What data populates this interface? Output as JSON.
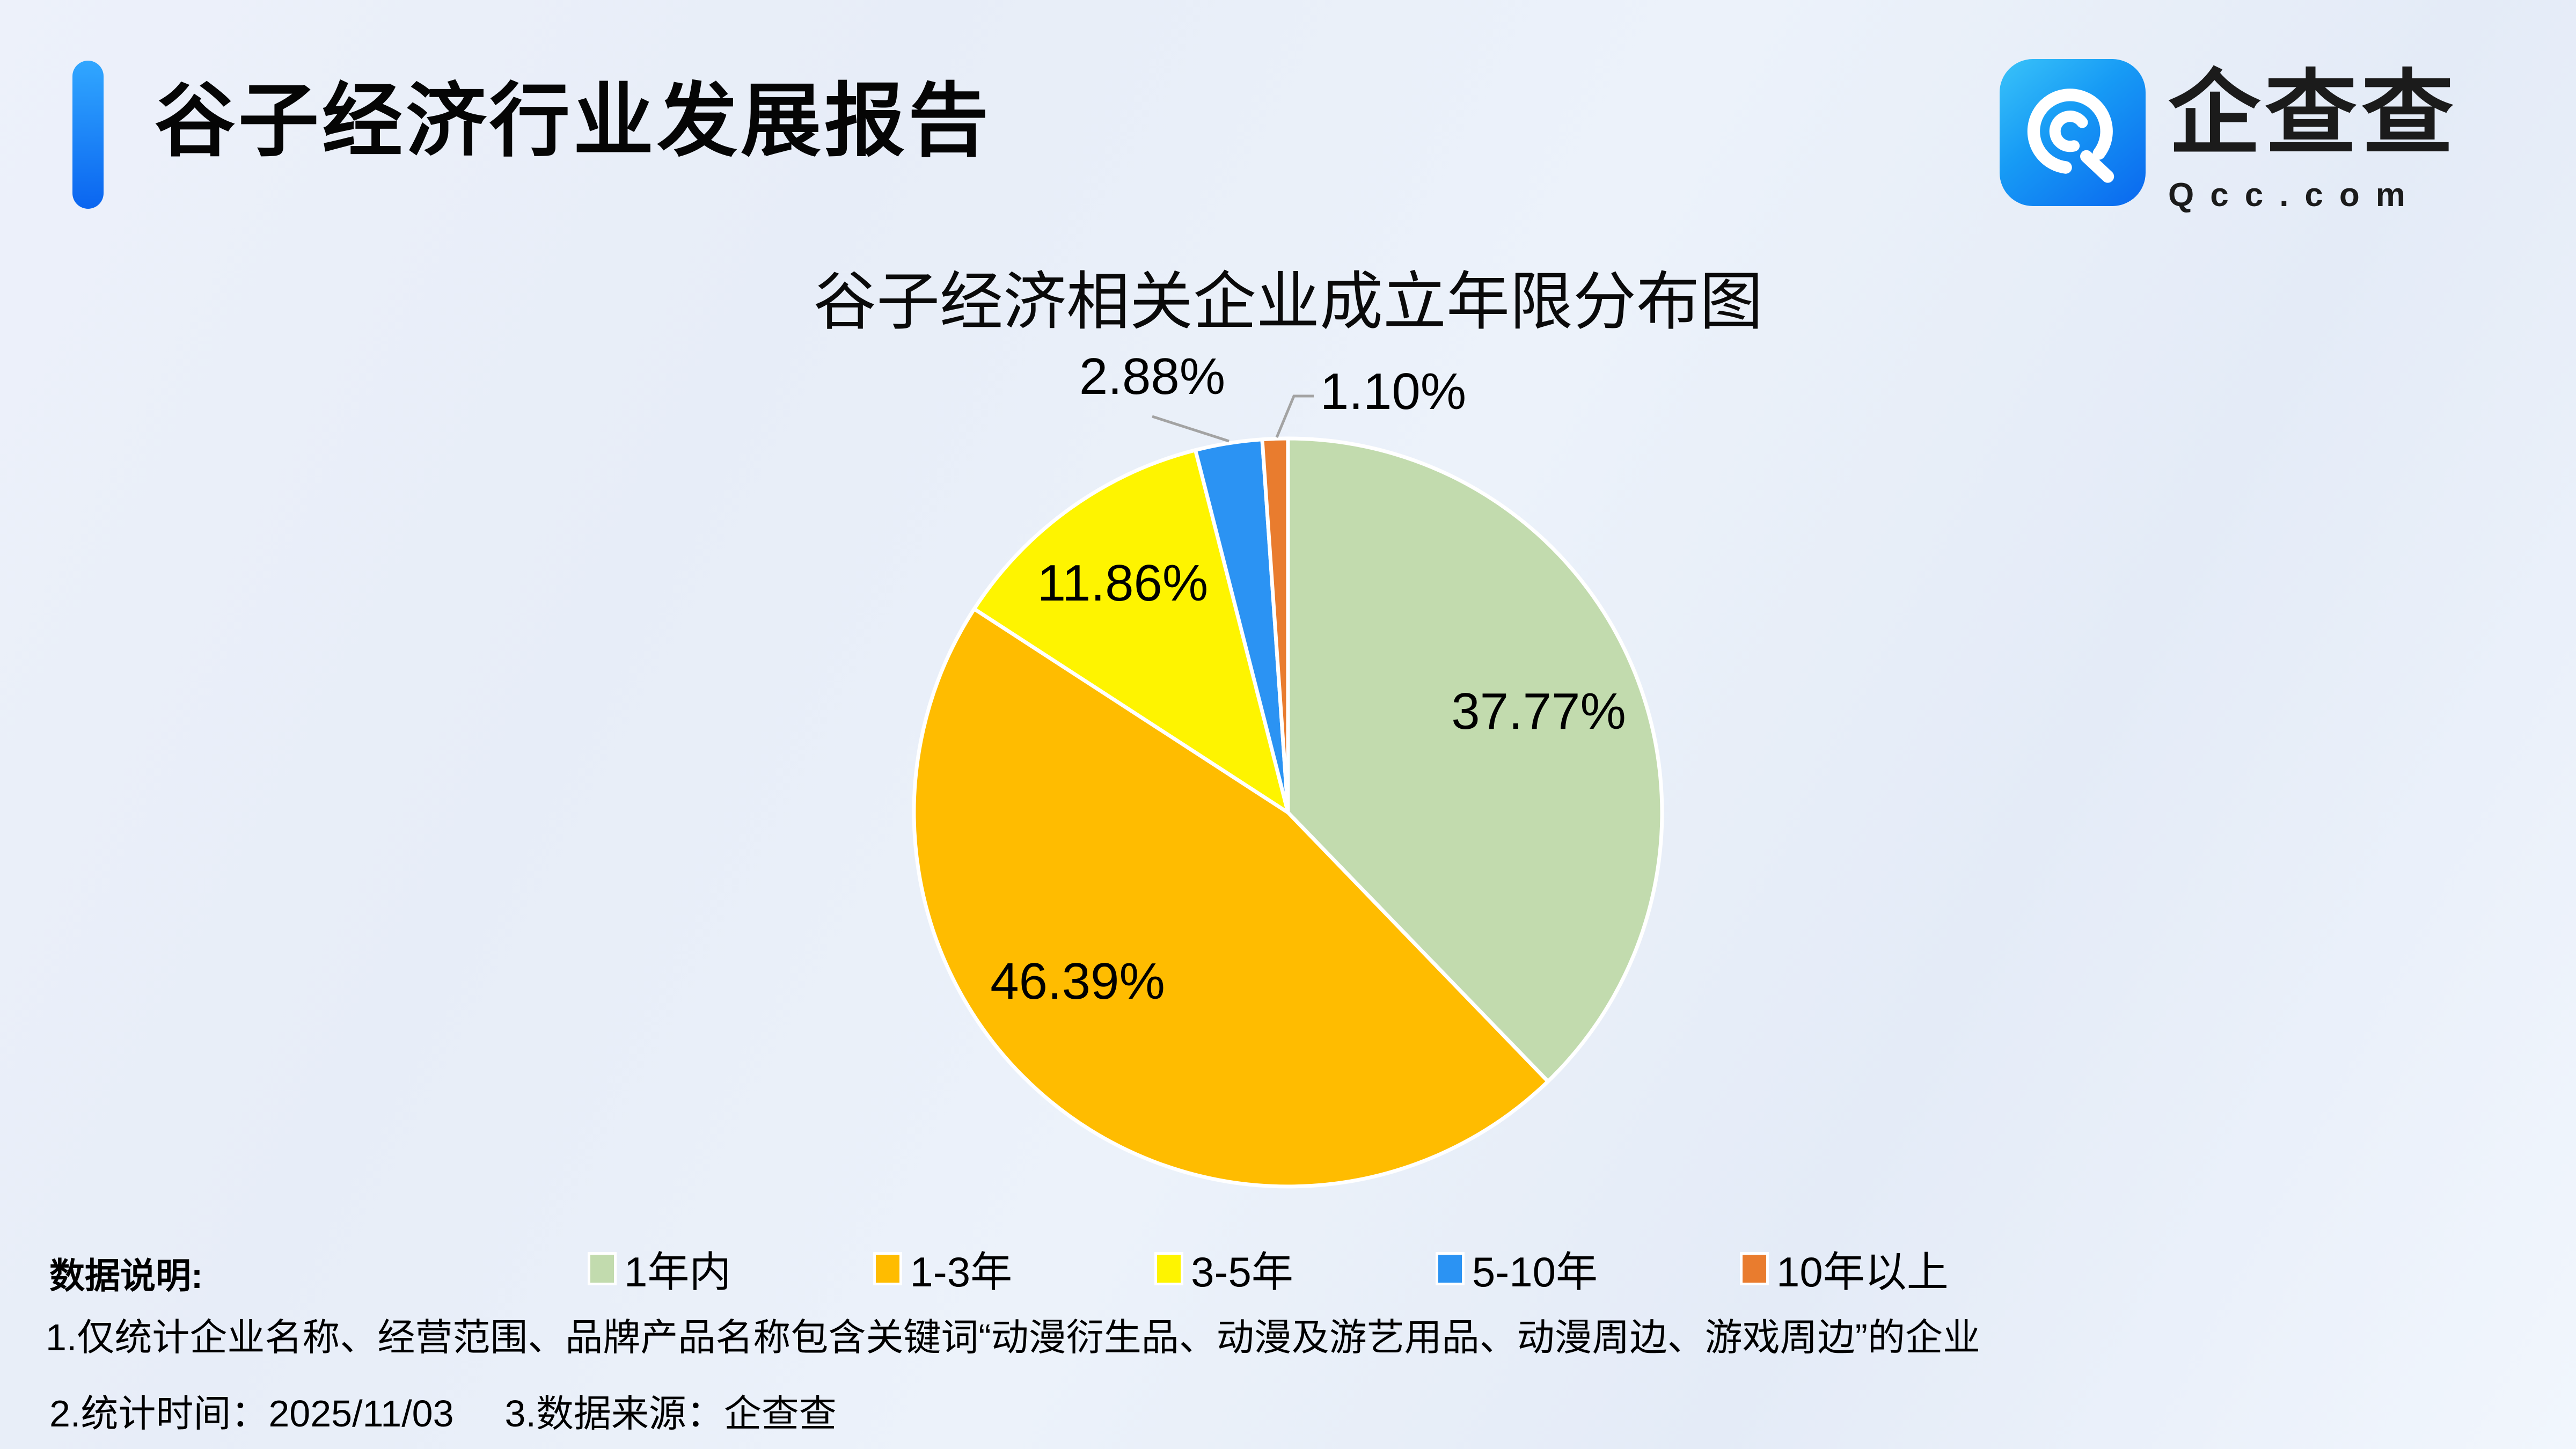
{
  "colors": {
    "background_start": "#EDF1FA",
    "background_end": "#F1F6FD",
    "accent_blue": "#0F7BF2",
    "leader_line": "#A3A3A3",
    "slice_border": "#FFFFFF",
    "text": "#000000"
  },
  "header": {
    "title": "谷子经济行业发展报告"
  },
  "logo": {
    "brand_name": "企查查",
    "brand_domain": "Qcc.com",
    "icon": "qcc-spiral-icon",
    "icon_gradient": [
      "#3AC3F9",
      "#0A67EF"
    ]
  },
  "chart_data": {
    "type": "pie",
    "title": "谷子经济相关企业成立年限分布图",
    "unit": "%",
    "start_at": "top",
    "direction": "clockwise",
    "legend_position": "bottom",
    "slices": [
      {
        "label": "1年内",
        "value": 37.77,
        "display": "37.77%",
        "color": "#C2DBAE",
        "label_placement": "inside"
      },
      {
        "label": "1-3年",
        "value": 46.39,
        "display": "46.39%",
        "color": "#FFBC00",
        "label_placement": "inside"
      },
      {
        "label": "3-5年",
        "value": 11.86,
        "display": "11.86%",
        "color": "#FEF400",
        "label_placement": "inside"
      },
      {
        "label": "5-10年",
        "value": 2.88,
        "display": "2.88%",
        "color": "#2B93F3",
        "label_placement": "outside"
      },
      {
        "label": "10年以上",
        "value": 1.1,
        "display": "1.10%",
        "color": "#E97C2E",
        "label_placement": "outside"
      }
    ]
  },
  "footnotes": {
    "heading": "数据说明:",
    "line1": "1.仅统计企业名称、经营范围、品牌产品名称包含关键词“动漫衍生品、动漫及游艺用品、动漫周边、游戏周边”的企业",
    "stat_time": "2.统计时间：2025/11/03",
    "source": "3.数据来源：企查查"
  }
}
